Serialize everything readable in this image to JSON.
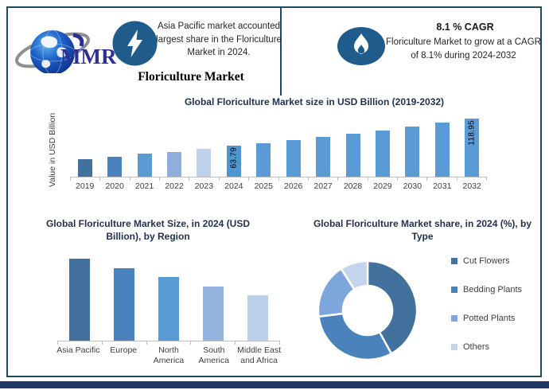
{
  "page": {
    "brand": "MMR",
    "highlight": "Asia Pacific market accounted largest share in the Floriculture Market in 2024.",
    "report_title": "Floriculture Market",
    "cagr_headline": "8.1 % CAGR",
    "cagr_body": "Floriculture Market to grow at a CAGR of 8.1% during 2024-2032"
  },
  "icons": {
    "logo": "mmr-globe-logo",
    "bolt": "lightning-icon",
    "flame": "flame-icon"
  },
  "colors": {
    "frame_border": "#1E4A5F",
    "bottom_strip": "#1F3864",
    "icon_circle": "#1F5C8C",
    "chart_title_text": "#1F3050",
    "axis_line": "#BFBFBF",
    "axis_label_text": "#3f3f3f",
    "logo_text": "#2D2F92"
  },
  "chart_data": [
    {
      "type": "bar",
      "title": "Global Floriculture Market size in USD Billion (2019-2032)",
      "xlabel": "",
      "ylabel": "Value in USD Billion",
      "categories": [
        "2019",
        "2020",
        "2021",
        "2022",
        "2023",
        "2024",
        "2025",
        "2026",
        "2027",
        "2028",
        "2029",
        "2030",
        "2031",
        "2032"
      ],
      "values": [
        35.2,
        40.0,
        46.4,
        51.2,
        57.6,
        63.79,
        68.96,
        74.54,
        80.58,
        87.11,
        94.16,
        101.79,
        110.04,
        118.95
      ],
      "value_labels": [
        "",
        "",
        "",
        "",
        "",
        "63.79",
        "",
        "",
        "",
        "",
        "",
        "",
        "",
        "118.95"
      ],
      "bar_colors": [
        "#41719C",
        "#4A82BE",
        "#5B9BD5",
        "#8FAEDC",
        "#BDD0EC",
        "#4D96D2",
        "#5B9BD5",
        "#5B9BD5",
        "#5B9BD5",
        "#5B9BD5",
        "#5B9BD5",
        "#5B9BD5",
        "#5B9BD5",
        "#5B9BD5"
      ],
      "ylim": [
        0,
        130
      ],
      "grid": false,
      "legend_position": "none"
    },
    {
      "type": "bar",
      "title": "Global Floriculture Market Size, in 2024 (USD Billion), by Region",
      "xlabel": "",
      "ylabel": "",
      "categories": [
        "Asia Pacific",
        "Europe",
        "North America",
        "South America",
        "Middle East and Africa"
      ],
      "values": [
        16.5,
        14.6,
        12.8,
        10.9,
        9.1
      ],
      "value_labels": [
        "",
        "",
        "",
        "",
        ""
      ],
      "bar_colors": [
        "#41719C",
        "#4A82BE",
        "#5B9BD5",
        "#92B4DF",
        "#BAD0EB"
      ],
      "ylim": [
        0,
        20
      ],
      "grid": false,
      "legend_position": "none"
    },
    {
      "type": "pie",
      "subtype": "donut",
      "title": "Global Floriculture Market share, in 2024 (%), by Type",
      "labels": [
        "Cut Flowers",
        "Bedding Plants",
        "Potted Plants",
        "Others"
      ],
      "values": [
        42,
        31,
        18,
        9
      ],
      "colors": [
        "#41719C",
        "#4A82BE",
        "#7CA6DC",
        "#C3D4EC"
      ],
      "legend_position": "right",
      "grid": false
    }
  ]
}
